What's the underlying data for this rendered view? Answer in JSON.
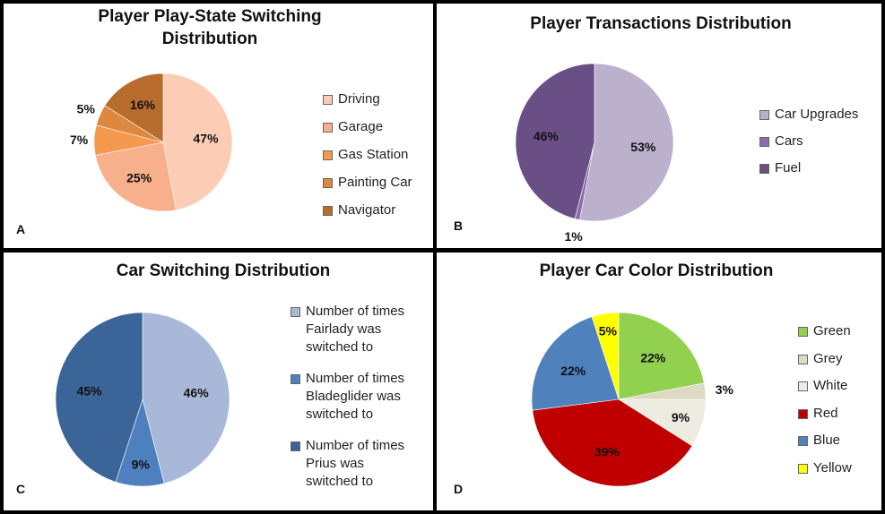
{
  "chart_data": [
    {
      "id": "A",
      "type": "pie",
      "title": "Player Play-State Switching Distribution",
      "panel_label": "A",
      "categories": [
        "Driving",
        "Garage",
        "Gas Station",
        "Painting Car",
        "Navigator"
      ],
      "values": [
        47,
        25,
        7,
        5,
        16
      ],
      "labels": [
        "47%",
        "25%",
        "7%",
        "5%",
        "16%"
      ],
      "colors": [
        "#FCCDB4",
        "#F8B08C",
        "#F5994F",
        "#DE8740",
        "#B86C2E"
      ],
      "legend_position": "right"
    },
    {
      "id": "B",
      "type": "pie",
      "title": "Player Transactions Distribution",
      "panel_label": "B",
      "categories": [
        "Car Upgrades",
        "Cars",
        "Fuel"
      ],
      "values": [
        53,
        1,
        46
      ],
      "labels": [
        "53%",
        "1%",
        "46%"
      ],
      "colors": [
        "#BCB1CC",
        "#8E6CAC",
        "#6A4F86"
      ],
      "legend_position": "right"
    },
    {
      "id": "C",
      "type": "pie",
      "title": "Car Switching Distribution",
      "panel_label": "C",
      "categories": [
        "Number of times\nFairlady was\nswitched to",
        "Number of times\nBladeglider was\nswitched to",
        "Number of times\nPrius was\nswitched to"
      ],
      "values": [
        46,
        9,
        45
      ],
      "labels": [
        "46%",
        "9%",
        "45%"
      ],
      "colors": [
        "#A9B8D8",
        "#4E80C0",
        "#3B6498"
      ],
      "legend_position": "right"
    },
    {
      "id": "D",
      "type": "pie",
      "title": "Player Car Color Distribution",
      "panel_label": "D",
      "categories": [
        "Green",
        "Grey",
        "White",
        "Red",
        "Blue",
        "Yellow"
      ],
      "values": [
        22,
        3,
        9,
        39,
        22,
        5
      ],
      "labels": [
        "22%",
        "3%",
        "9%",
        "39%",
        "22%",
        "5%"
      ],
      "colors": [
        "#92D050",
        "#DDD9C3",
        "#EEECE1",
        "#C00000",
        "#4F81BD",
        "#FFFF00"
      ],
      "legend_position": "right"
    }
  ]
}
